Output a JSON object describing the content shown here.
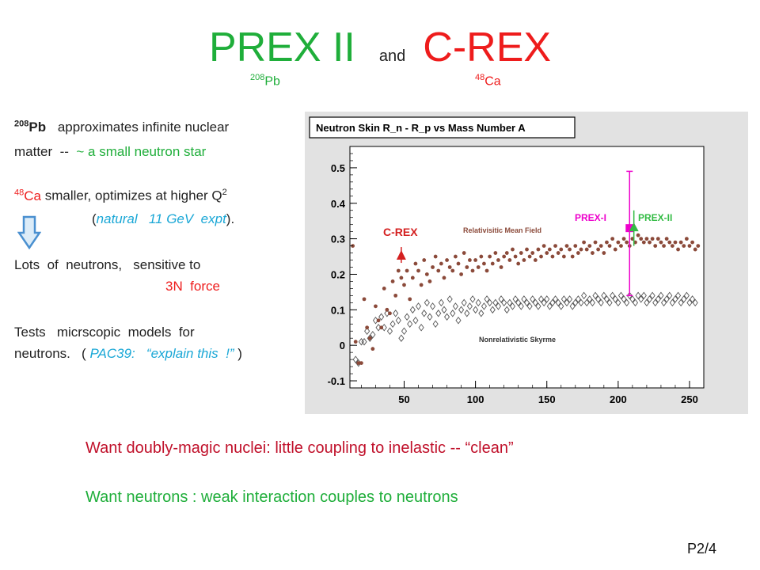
{
  "title": {
    "prex": "PREX II",
    "and": "and",
    "crex": "C-REX"
  },
  "subtitles": {
    "pb_mass": "208",
    "pb_symbol": "Pb",
    "ca_mass": "48",
    "ca_symbol": "Ca"
  },
  "left_text": {
    "l1_mass": "208",
    "l1_symbol": "Pb",
    "l1_rest": "approximates infinite nuclear",
    "l2_a": "matter  --  ",
    "l2_b": "~  a small neutron star",
    "l3_mass": "48",
    "l3_symbol": "Ca",
    "l3_rest": " smaller, optimizes at higher Q",
    "l3_sup": "2",
    "l4_open": "(",
    "l4_italic": "natural   11 GeV  expt",
    "l4_close": ").",
    "l5": "Lots  of  neutrons,   sensitive to",
    "l6": "3N  force",
    "l7": "Tests   micrscopic  models  for",
    "l8_a": "neutrons.   ( ",
    "l8_italic": "PAC39:   “explain this  !”",
    "l8_b": " )"
  },
  "bottom": {
    "line1": "Want  doubly-magic  nuclei:    little coupling to inelastic --  “clean”",
    "line2": "Want  neutrons :    weak interaction couples  to neutrons"
  },
  "page_number": "P2/4",
  "colors": {
    "green": "#1fae3a",
    "red": "#ee1c1c",
    "cyan": "#1aa7d6",
    "bottom_red": "#c0102a",
    "rmf": "#8b4a3a",
    "skyrme": "#555555",
    "prex1": "#ee00cc",
    "prex2": "#33bb44",
    "crex": "#d42020"
  },
  "chart_data": {
    "type": "scatter",
    "title": "Neutron Skin R_n - R_p  vs  Mass Number A",
    "xlabel": "",
    "ylabel": "",
    "xlim": [
      12,
      260
    ],
    "ylim": [
      -0.12,
      0.56
    ],
    "xticks": [
      50,
      100,
      150,
      200,
      250
    ],
    "yticks": [
      -0.1,
      0,
      0.1,
      0.2,
      0.3,
      0.4,
      0.5
    ],
    "grid": false,
    "series": [
      {
        "name": "Relativisitic Mean Field",
        "marker": "dot",
        "points": [
          [
            14,
            0.28
          ],
          [
            16,
            0.01
          ],
          [
            18,
            -0.05
          ],
          [
            20,
            -0.05
          ],
          [
            22,
            0.13
          ],
          [
            24,
            0.05
          ],
          [
            26,
            0.02
          ],
          [
            28,
            -0.01
          ],
          [
            30,
            0.11
          ],
          [
            32,
            0.07
          ],
          [
            34,
            0.05
          ],
          [
            36,
            0.16
          ],
          [
            38,
            0.1
          ],
          [
            40,
            0.09
          ],
          [
            42,
            0.18
          ],
          [
            44,
            0.14
          ],
          [
            46,
            0.21
          ],
          [
            48,
            0.19
          ],
          [
            50,
            0.17
          ],
          [
            52,
            0.21
          ],
          [
            54,
            0.13
          ],
          [
            56,
            0.19
          ],
          [
            58,
            0.23
          ],
          [
            60,
            0.21
          ],
          [
            62,
            0.17
          ],
          [
            64,
            0.24
          ],
          [
            66,
            0.2
          ],
          [
            68,
            0.18
          ],
          [
            70,
            0.22
          ],
          [
            72,
            0.25
          ],
          [
            74,
            0.21
          ],
          [
            76,
            0.23
          ],
          [
            78,
            0.19
          ],
          [
            80,
            0.24
          ],
          [
            82,
            0.22
          ],
          [
            84,
            0.21
          ],
          [
            86,
            0.25
          ],
          [
            88,
            0.23
          ],
          [
            90,
            0.2
          ],
          [
            92,
            0.26
          ],
          [
            94,
            0.22
          ],
          [
            96,
            0.24
          ],
          [
            98,
            0.21
          ],
          [
            100,
            0.24
          ],
          [
            102,
            0.22
          ],
          [
            104,
            0.25
          ],
          [
            106,
            0.23
          ],
          [
            108,
            0.21
          ],
          [
            110,
            0.25
          ],
          [
            112,
            0.23
          ],
          [
            114,
            0.26
          ],
          [
            116,
            0.24
          ],
          [
            118,
            0.22
          ],
          [
            120,
            0.25
          ],
          [
            122,
            0.26
          ],
          [
            124,
            0.24
          ],
          [
            126,
            0.27
          ],
          [
            128,
            0.25
          ],
          [
            130,
            0.23
          ],
          [
            132,
            0.26
          ],
          [
            134,
            0.24
          ],
          [
            136,
            0.27
          ],
          [
            138,
            0.25
          ],
          [
            140,
            0.26
          ],
          [
            142,
            0.24
          ],
          [
            144,
            0.27
          ],
          [
            146,
            0.25
          ],
          [
            148,
            0.28
          ],
          [
            150,
            0.26
          ],
          [
            152,
            0.27
          ],
          [
            154,
            0.25
          ],
          [
            156,
            0.28
          ],
          [
            158,
            0.26
          ],
          [
            160,
            0.27
          ],
          [
            162,
            0.25
          ],
          [
            164,
            0.28
          ],
          [
            166,
            0.27
          ],
          [
            168,
            0.25
          ],
          [
            170,
            0.28
          ],
          [
            172,
            0.26
          ],
          [
            174,
            0.27
          ],
          [
            176,
            0.29
          ],
          [
            178,
            0.27
          ],
          [
            180,
            0.28
          ],
          [
            182,
            0.26
          ],
          [
            184,
            0.29
          ],
          [
            186,
            0.27
          ],
          [
            188,
            0.28
          ],
          [
            190,
            0.26
          ],
          [
            192,
            0.29
          ],
          [
            194,
            0.28
          ],
          [
            196,
            0.3
          ],
          [
            198,
            0.27
          ],
          [
            200,
            0.29
          ],
          [
            202,
            0.28
          ],
          [
            204,
            0.3
          ],
          [
            206,
            0.29
          ],
          [
            208,
            0.28
          ],
          [
            210,
            0.3
          ],
          [
            212,
            0.29
          ],
          [
            214,
            0.31
          ],
          [
            216,
            0.3
          ],
          [
            218,
            0.29
          ],
          [
            220,
            0.3
          ],
          [
            222,
            0.29
          ],
          [
            224,
            0.3
          ],
          [
            226,
            0.28
          ],
          [
            228,
            0.3
          ],
          [
            230,
            0.29
          ],
          [
            232,
            0.28
          ],
          [
            234,
            0.3
          ],
          [
            236,
            0.29
          ],
          [
            238,
            0.28
          ],
          [
            240,
            0.29
          ],
          [
            242,
            0.27
          ],
          [
            244,
            0.29
          ],
          [
            246,
            0.28
          ],
          [
            248,
            0.3
          ],
          [
            250,
            0.28
          ],
          [
            252,
            0.29
          ],
          [
            254,
            0.27
          ],
          [
            256,
            0.28
          ]
        ]
      },
      {
        "name": "Nonrelativistic Skyrme",
        "marker": "diamond",
        "points": [
          [
            16,
            -0.04
          ],
          [
            18,
            -0.05
          ],
          [
            20,
            0.01
          ],
          [
            22,
            0.01
          ],
          [
            24,
            0.04
          ],
          [
            26,
            0.02
          ],
          [
            28,
            0.03
          ],
          [
            30,
            0.07
          ],
          [
            32,
            0.05
          ],
          [
            34,
            0.08
          ],
          [
            36,
            0.05
          ],
          [
            38,
            0.09
          ],
          [
            40,
            0.04
          ],
          [
            42,
            0.06
          ],
          [
            44,
            0.09
          ],
          [
            46,
            0.07
          ],
          [
            48,
            0.02
          ],
          [
            50,
            0.04
          ],
          [
            52,
            0.08
          ],
          [
            54,
            0.06
          ],
          [
            56,
            0.1
          ],
          [
            58,
            0.07
          ],
          [
            60,
            0.11
          ],
          [
            62,
            0.05
          ],
          [
            64,
            0.09
          ],
          [
            66,
            0.12
          ],
          [
            68,
            0.08
          ],
          [
            70,
            0.11
          ],
          [
            72,
            0.06
          ],
          [
            74,
            0.09
          ],
          [
            76,
            0.12
          ],
          [
            78,
            0.1
          ],
          [
            80,
            0.08
          ],
          [
            82,
            0.13
          ],
          [
            84,
            0.09
          ],
          [
            86,
            0.11
          ],
          [
            88,
            0.07
          ],
          [
            90,
            0.1
          ],
          [
            92,
            0.12
          ],
          [
            94,
            0.09
          ],
          [
            96,
            0.11
          ],
          [
            98,
            0.13
          ],
          [
            100,
            0.1
          ],
          [
            102,
            0.12
          ],
          [
            104,
            0.09
          ],
          [
            106,
            0.11
          ],
          [
            108,
            0.13
          ],
          [
            110,
            0.12
          ],
          [
            112,
            0.1
          ],
          [
            114,
            0.12
          ],
          [
            116,
            0.11
          ],
          [
            118,
            0.13
          ],
          [
            120,
            0.12
          ],
          [
            122,
            0.1
          ],
          [
            124,
            0.12
          ],
          [
            126,
            0.11
          ],
          [
            128,
            0.13
          ],
          [
            130,
            0.12
          ],
          [
            132,
            0.11
          ],
          [
            134,
            0.13
          ],
          [
            136,
            0.12
          ],
          [
            138,
            0.11
          ],
          [
            140,
            0.13
          ],
          [
            142,
            0.12
          ],
          [
            144,
            0.11
          ],
          [
            146,
            0.13
          ],
          [
            148,
            0.12
          ],
          [
            150,
            0.13
          ],
          [
            152,
            0.11
          ],
          [
            154,
            0.12
          ],
          [
            156,
            0.13
          ],
          [
            158,
            0.12
          ],
          [
            160,
            0.11
          ],
          [
            162,
            0.13
          ],
          [
            164,
            0.12
          ],
          [
            166,
            0.13
          ],
          [
            168,
            0.11
          ],
          [
            170,
            0.12
          ],
          [
            172,
            0.13
          ],
          [
            174,
            0.12
          ],
          [
            176,
            0.14
          ],
          [
            178,
            0.12
          ],
          [
            180,
            0.13
          ],
          [
            182,
            0.12
          ],
          [
            184,
            0.14
          ],
          [
            186,
            0.13
          ],
          [
            188,
            0.12
          ],
          [
            190,
            0.14
          ],
          [
            192,
            0.13
          ],
          [
            194,
            0.12
          ],
          [
            196,
            0.14
          ],
          [
            198,
            0.13
          ],
          [
            200,
            0.12
          ],
          [
            202,
            0.14
          ],
          [
            204,
            0.13
          ],
          [
            206,
            0.12
          ],
          [
            208,
            0.14
          ],
          [
            210,
            0.13
          ],
          [
            212,
            0.12
          ],
          [
            214,
            0.14
          ],
          [
            216,
            0.13
          ],
          [
            218,
            0.14
          ],
          [
            220,
            0.12
          ],
          [
            222,
            0.13
          ],
          [
            224,
            0.14
          ],
          [
            226,
            0.12
          ],
          [
            228,
            0.13
          ],
          [
            230,
            0.14
          ],
          [
            232,
            0.12
          ],
          [
            234,
            0.13
          ],
          [
            236,
            0.14
          ],
          [
            238,
            0.12
          ],
          [
            240,
            0.13
          ],
          [
            242,
            0.14
          ],
          [
            244,
            0.12
          ],
          [
            246,
            0.13
          ],
          [
            248,
            0.14
          ],
          [
            250,
            0.12
          ],
          [
            252,
            0.13
          ],
          [
            254,
            0.12
          ]
        ]
      }
    ],
    "measurements": [
      {
        "name": "C-REX",
        "x": 48,
        "y": 0.25,
        "marker": "triangle-up",
        "color": "#d42020"
      },
      {
        "name": "PREX-I",
        "x": 208,
        "y": 0.33,
        "ylow": 0.14,
        "yhigh": 0.49,
        "marker": "square",
        "color": "#ee00cc"
      },
      {
        "name": "PREX-II",
        "x": 211,
        "y": 0.33,
        "ylow": 0.28,
        "yhigh": 0.38,
        "marker": "triangle-up",
        "color": "#33bb44"
      }
    ],
    "annotations": [
      "C-REX",
      "PREX-I",
      "PREX-II",
      "Relativisitic Mean Field",
      "Nonrelativistic Skyrme"
    ]
  }
}
